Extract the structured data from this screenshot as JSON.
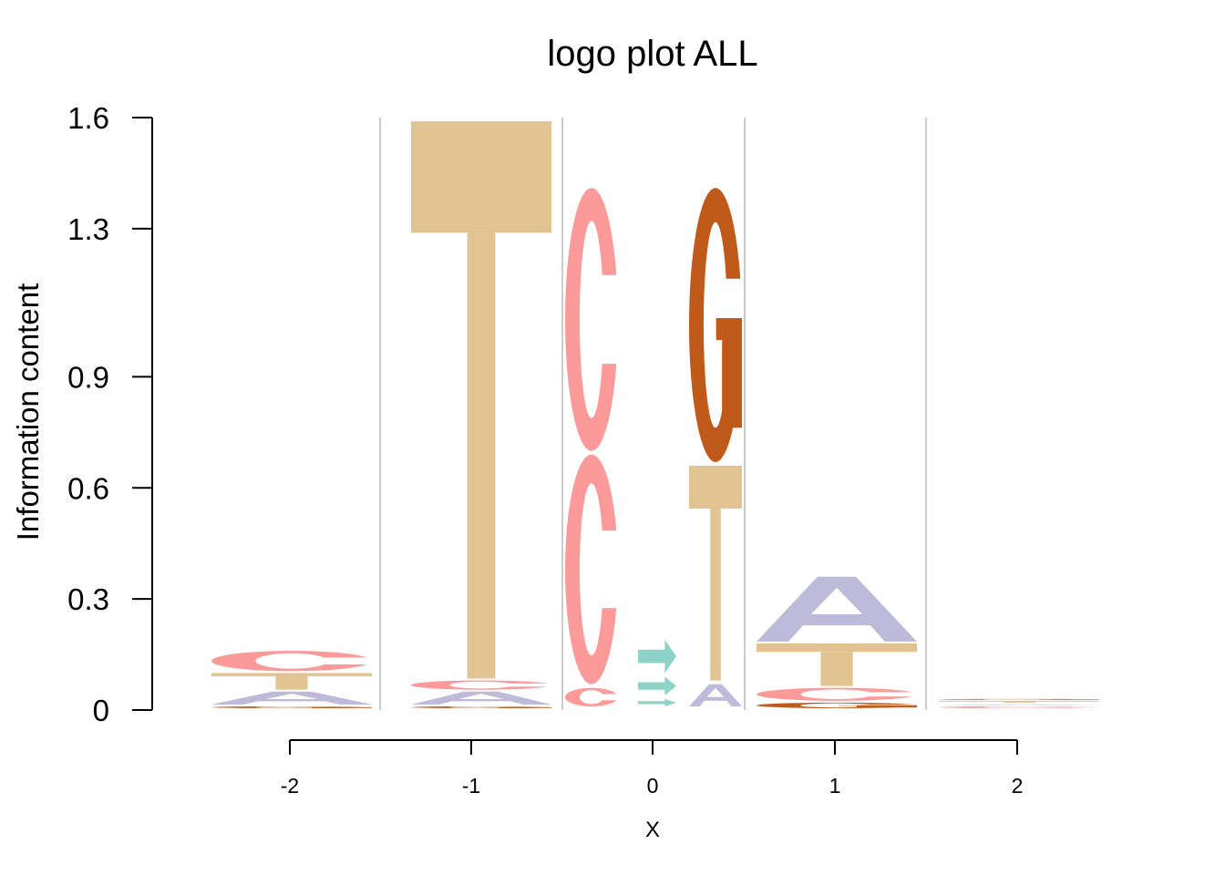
{
  "chart_data": {
    "type": "sequence-logo",
    "title": "logo plot ALL",
    "xlabel": "X",
    "ylabel": "Information content",
    "ylim": [
      0,
      1.6
    ],
    "yticks": [
      "0",
      "0.3",
      "0.6",
      "0.9",
      "1.3",
      "1.6"
    ],
    "ytick_values": [
      0,
      0.3,
      0.6,
      0.9,
      1.3,
      1.6
    ],
    "xticks": [
      "-2",
      "-1",
      "0",
      "1",
      "2"
    ],
    "colors": {
      "A": "#bebada",
      "C": "#fb9a99",
      "G": "#c05a1a",
      "T": "#e2c492",
      "arrow": "#8dd3c7"
    },
    "positions": [
      {
        "x": "-2",
        "letters": [
          {
            "base": "G",
            "height": 0.01
          },
          {
            "base": "A",
            "height": 0.04
          },
          {
            "base": "T",
            "height": 0.05
          },
          {
            "base": "C",
            "height": 0.06
          }
        ]
      },
      {
        "x": "-1",
        "letters": [
          {
            "base": "G",
            "height": 0.01
          },
          {
            "base": "A",
            "height": 0.04
          },
          {
            "base": "C",
            "height": 0.03
          },
          {
            "base": "T",
            "height": 1.51
          }
        ]
      },
      {
        "x": "0",
        "columns": [
          {
            "letters": [
              {
                "base": "C",
                "height": 0.06
              },
              {
                "base": "C",
                "height": 0.63
              },
              {
                "base": "C",
                "height": 0.72
              }
            ]
          },
          {
            "letters": [
              {
                "base": "arrow",
                "height": 0.03
              },
              {
                "base": "arrow",
                "height": 0.06
              },
              {
                "base": "arrow",
                "height": 0.1
              }
            ]
          },
          {
            "letters": [
              {
                "base": "A",
                "height": 0.07
              },
              {
                "base": "T",
                "height": 0.59
              },
              {
                "base": "G",
                "height": 0.75
              }
            ]
          }
        ]
      },
      {
        "x": "1",
        "letters": [
          {
            "base": "G",
            "height": 0.02
          },
          {
            "base": "C",
            "height": 0.04
          },
          {
            "base": "T",
            "height": 0.12
          },
          {
            "base": "A",
            "height": 0.18
          }
        ]
      },
      {
        "x": "2",
        "letters": [
          {
            "base": "C",
            "height": 0.01
          },
          {
            "base": "A",
            "height": 0.005
          },
          {
            "base": "T",
            "height": 0.01
          },
          {
            "base": "G",
            "height": 0.005
          }
        ]
      }
    ]
  }
}
